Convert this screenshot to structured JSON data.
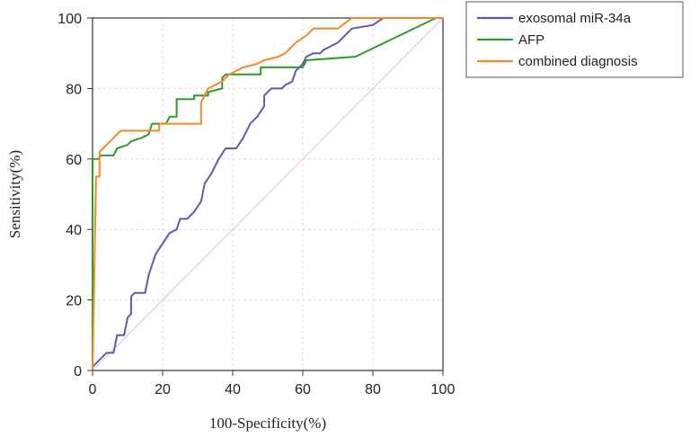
{
  "chart_data": {
    "type": "line",
    "title": "",
    "xlabel": "100-Specificity(%)",
    "ylabel": "Sensitivity(%)",
    "xlim": [
      0,
      100
    ],
    "ylim": [
      0,
      100
    ],
    "xticks": [
      0,
      20,
      40,
      60,
      80,
      100
    ],
    "yticks": [
      0,
      20,
      40,
      60,
      80,
      100
    ],
    "grid": true,
    "legend_position": "top-right outside",
    "series": [
      {
        "name": "exosomal miR-34a",
        "color": "#5b5bb0",
        "points": [
          [
            0,
            0
          ],
          [
            0,
            1
          ],
          [
            1,
            2
          ],
          [
            2,
            3
          ],
          [
            3,
            4
          ],
          [
            4,
            5
          ],
          [
            6,
            5
          ],
          [
            7,
            10
          ],
          [
            9,
            10
          ],
          [
            10,
            15
          ],
          [
            11,
            16
          ],
          [
            11,
            21
          ],
          [
            12,
            22
          ],
          [
            15,
            22
          ],
          [
            16,
            27
          ],
          [
            17,
            30
          ],
          [
            18,
            33
          ],
          [
            20,
            36
          ],
          [
            22,
            39
          ],
          [
            24,
            40
          ],
          [
            25,
            43
          ],
          [
            27,
            43
          ],
          [
            29,
            45
          ],
          [
            31,
            48
          ],
          [
            32,
            53
          ],
          [
            34,
            56
          ],
          [
            36,
            60
          ],
          [
            38,
            63
          ],
          [
            41,
            63
          ],
          [
            43,
            66
          ],
          [
            45,
            70
          ],
          [
            47,
            72
          ],
          [
            49,
            75
          ],
          [
            49,
            78
          ],
          [
            51,
            80
          ],
          [
            54,
            80
          ],
          [
            55,
            81
          ],
          [
            57,
            82
          ],
          [
            58,
            85
          ],
          [
            60,
            87
          ],
          [
            61,
            89
          ],
          [
            63,
            90
          ],
          [
            65,
            90
          ],
          [
            66,
            91
          ],
          [
            68,
            92
          ],
          [
            70,
            93
          ],
          [
            72,
            95
          ],
          [
            74,
            97
          ],
          [
            80,
            98
          ],
          [
            83,
            100
          ],
          [
            100,
            100
          ]
        ]
      },
      {
        "name": "AFP",
        "color": "#2e9a2e",
        "points": [
          [
            0,
            0
          ],
          [
            0,
            60
          ],
          [
            2,
            60
          ],
          [
            2,
            61
          ],
          [
            6,
            61
          ],
          [
            7,
            63
          ],
          [
            10,
            64
          ],
          [
            11,
            65
          ],
          [
            14,
            66
          ],
          [
            16,
            67
          ],
          [
            17,
            70
          ],
          [
            21,
            70
          ],
          [
            22,
            72
          ],
          [
            24,
            72
          ],
          [
            24,
            77
          ],
          [
            29,
            77
          ],
          [
            29,
            78
          ],
          [
            33,
            78
          ],
          [
            33,
            79
          ],
          [
            37,
            80
          ],
          [
            37,
            83
          ],
          [
            38,
            84
          ],
          [
            48,
            84
          ],
          [
            48,
            86
          ],
          [
            60,
            86
          ],
          [
            61,
            88
          ],
          [
            75,
            89
          ],
          [
            98,
            100
          ],
          [
            100,
            100
          ]
        ]
      },
      {
        "name": "combined diagnosis",
        "color": "#f4882c",
        "points": [
          [
            0,
            0
          ],
          [
            1,
            55
          ],
          [
            2,
            55
          ],
          [
            2,
            62
          ],
          [
            3,
            63
          ],
          [
            4,
            64
          ],
          [
            5,
            65
          ],
          [
            6,
            66
          ],
          [
            7,
            67
          ],
          [
            8,
            68
          ],
          [
            19,
            68
          ],
          [
            19,
            70
          ],
          [
            31,
            70
          ],
          [
            31,
            76
          ],
          [
            32,
            78
          ],
          [
            33,
            80
          ],
          [
            35,
            81
          ],
          [
            37,
            82
          ],
          [
            39,
            84
          ],
          [
            41,
            85
          ],
          [
            43,
            86
          ],
          [
            47,
            87
          ],
          [
            49,
            88
          ],
          [
            53,
            89
          ],
          [
            55,
            90
          ],
          [
            58,
            93
          ],
          [
            61,
            95
          ],
          [
            63,
            97
          ],
          [
            70,
            97
          ],
          [
            74,
            100
          ],
          [
            100,
            100
          ]
        ]
      },
      {
        "name": "reference",
        "color": "#f0c4c4",
        "points": [
          [
            0,
            0
          ],
          [
            100,
            100
          ]
        ]
      }
    ]
  }
}
